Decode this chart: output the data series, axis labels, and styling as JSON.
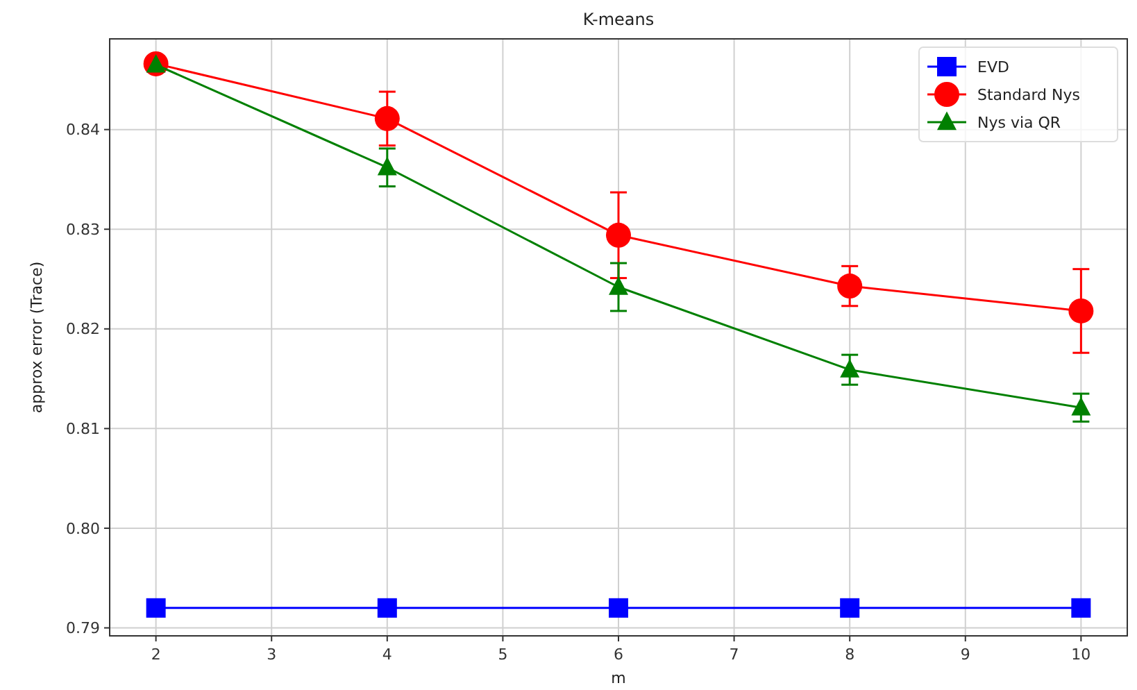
{
  "chart_data": {
    "type": "line",
    "title": "K-means",
    "xlabel": "m",
    "ylabel": "approx error (Trace)",
    "x": [
      2,
      4,
      6,
      8,
      10
    ],
    "xlim": [
      1.6,
      10.4
    ],
    "xticks": [
      2,
      3,
      4,
      5,
      6,
      7,
      8,
      9,
      10
    ],
    "ylim": [
      0.7892,
      0.8491
    ],
    "yticks": [
      {
        "value": 0.79,
        "label": "0.79"
      },
      {
        "value": 0.8,
        "label": "0.80"
      },
      {
        "value": 0.81,
        "label": "0.81"
      },
      {
        "value": 0.82,
        "label": "0.82"
      },
      {
        "value": 0.83,
        "label": "0.83"
      },
      {
        "value": 0.84,
        "label": "0.84"
      }
    ],
    "grid": true,
    "legend": "top right",
    "line_style": "solid",
    "series": [
      {
        "name": "EVD",
        "color": "#0000ff",
        "marker": "square",
        "values": [
          0.792,
          0.792,
          0.792,
          0.792,
          0.792
        ]
      },
      {
        "name": "Standard Nys",
        "color": "#ff0000",
        "marker": "circle",
        "values": [
          0.8466,
          0.8411,
          0.8294,
          0.8243,
          0.8218
        ],
        "errors": [
          null,
          0.0027,
          0.0043,
          0.002,
          0.0042
        ]
      },
      {
        "name": "Nys via QR",
        "color": "#008000",
        "marker": "triangle",
        "values": [
          0.8465,
          0.8362,
          0.8242,
          0.8159,
          0.8121
        ],
        "errors": [
          null,
          0.0019,
          0.0024,
          0.0015,
          0.0014
        ]
      }
    ]
  }
}
